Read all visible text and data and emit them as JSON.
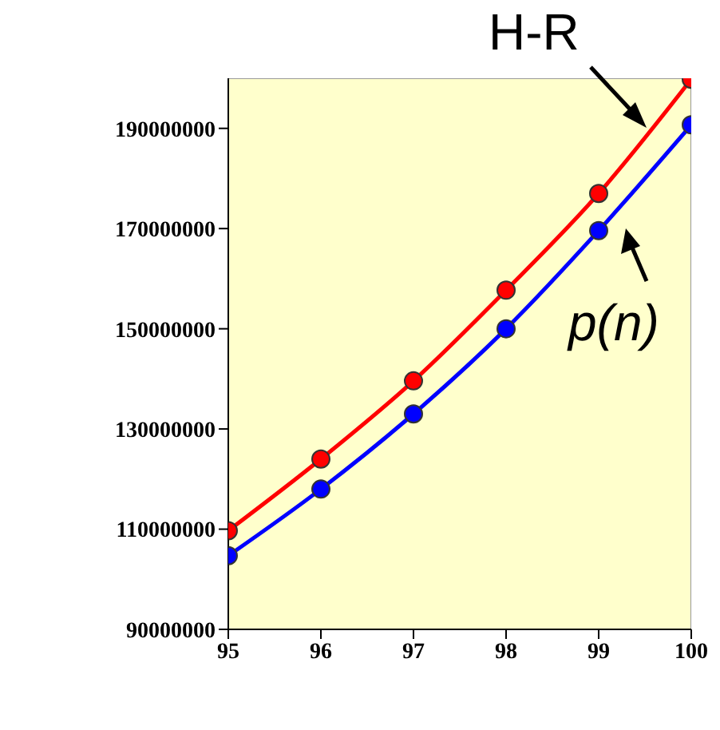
{
  "chart_data": {
    "type": "line",
    "x": [
      95,
      96,
      97,
      98,
      99,
      100
    ],
    "xlim": [
      95,
      100
    ],
    "xticks": [
      95,
      96,
      97,
      98,
      99,
      100
    ],
    "ylim": [
      90000000,
      200000000
    ],
    "yticks": [
      90000000,
      110000000,
      130000000,
      150000000,
      170000000,
      190000000
    ],
    "marker": "circle",
    "grid": false,
    "legend": false,
    "series": [
      {
        "name": "H-R",
        "color": "#ff0000",
        "values": [
          109700000,
          124000000,
          139600000,
          157700000,
          177000000,
          199800000
        ]
      },
      {
        "name": "p(n)",
        "color": "#0000ff",
        "values": [
          104700000,
          118000000,
          133000000,
          150000000,
          169600000,
          190700000
        ]
      }
    ]
  }
}
